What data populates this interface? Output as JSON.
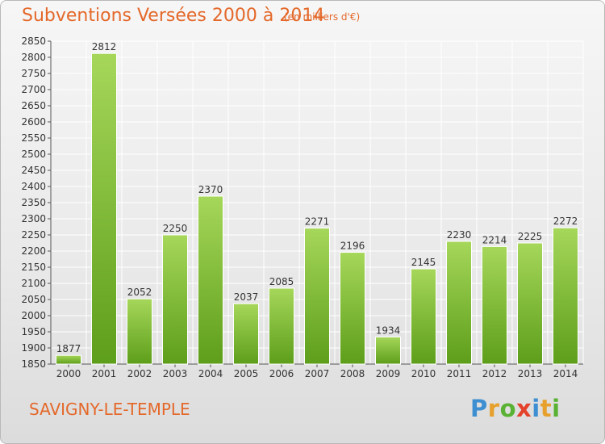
{
  "header": {
    "title": "Subventions Versées 2000 à 2014",
    "unit": "(en milliers d'€)"
  },
  "footer": {
    "commune": "SAVIGNY-LE-TEMPLE",
    "brand_letters": [
      "P",
      "r",
      "o",
      "x",
      "i",
      "t",
      "i"
    ]
  },
  "colors": {
    "title": "#e4682a",
    "bar_top": "#a6d75a",
    "bar_bottom": "#5d9e1a",
    "grid": "#ffffff"
  },
  "chart_data": {
    "type": "bar",
    "categories": [
      "2000",
      "2001",
      "2002",
      "2003",
      "2004",
      "2005",
      "2006",
      "2007",
      "2008",
      "2009",
      "2010",
      "2011",
      "2012",
      "2013",
      "2014"
    ],
    "values": [
      1877,
      2812,
      2052,
      2250,
      2370,
      2037,
      2085,
      2271,
      2196,
      1934,
      2145,
      2230,
      2214,
      2225,
      2272
    ],
    "ylim": [
      1850,
      2850
    ],
    "ytick_step": 50,
    "grid": true,
    "legend": false
  }
}
